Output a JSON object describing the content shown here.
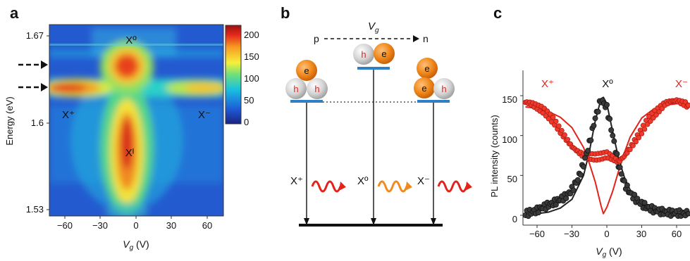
{
  "panels": {
    "a": {
      "label": "a",
      "ylabel": "Energy (eV)",
      "xlabel": "V",
      "xlabel_sub": "g",
      "xlabel_unit": " (V)",
      "xticks": [
        "−60",
        "−30",
        "0",
        "30",
        "60"
      ],
      "yticks": [
        "1.67",
        "1.6",
        "1.53"
      ],
      "annotations": {
        "x0": "Xº",
        "xplus": "X⁺",
        "xminus": "X⁻",
        "xi": "Xᴵ"
      },
      "colorbar_ticks": [
        "200",
        "150",
        "100",
        "50",
        "0"
      ],
      "colorbar_colors": [
        "#1a237e",
        "#1e5bd8",
        "#19c1e0",
        "#6fe07a",
        "#f5f03a",
        "#f79a22",
        "#e52a1c",
        "#9d1010"
      ]
    },
    "b": {
      "label": "b",
      "gate": "V",
      "gate_sub": "g",
      "p": "p",
      "n": "n",
      "hole": "h",
      "electron": "e",
      "labels": {
        "xplus": "X⁺",
        "x0": "Xº",
        "xminus": "X⁻"
      },
      "colors": {
        "electron": "#f08a1c",
        "hole": "#d6d6d6",
        "level": "#2f7fc4",
        "wave_red": "#e2231a",
        "wave_orange": "#f08a1c"
      }
    },
    "c": {
      "label": "c",
      "ylabel": "PL intensity (counts)",
      "xlabel": "V",
      "xlabel_sub": "g",
      "xlabel_unit": " (V)",
      "xticks": [
        "−60",
        "−30",
        "0",
        "30",
        "60"
      ],
      "yticks": [
        "150",
        "100",
        "50",
        "0"
      ],
      "legend": {
        "xplus": "X⁺",
        "x0": "Xº",
        "xminus": "X⁻"
      }
    }
  },
  "chart_data": [
    {
      "type": "heatmap",
      "panel": "a",
      "xlabel": "Vg (V)",
      "ylabel": "Energy (eV)",
      "xlim": [
        -70,
        70
      ],
      "ylim": [
        1.52,
        1.68
      ],
      "colorbar_range": [
        0,
        220
      ],
      "features": [
        {
          "name": "Xº",
          "energy_eV": 1.647,
          "vg_center": -5,
          "vg_range": [
            -22,
            15
          ],
          "peak": 200
        },
        {
          "name": "X⁺",
          "energy_eV": 1.625,
          "vg_range": [
            -70,
            -10
          ],
          "peak": 200
        },
        {
          "name": "X⁻",
          "energy_eV": 1.625,
          "vg_range": [
            25,
            70
          ],
          "peak": 180
        },
        {
          "name": "Xᴵ",
          "energy_eV": 1.58,
          "vg_center": -5,
          "peak": 190
        }
      ],
      "arrows_energy_eV": [
        1.647,
        1.625
      ]
    },
    {
      "type": "scatter",
      "panel": "c",
      "xlabel": "Vg (V)",
      "ylabel": "PL intensity (counts)",
      "xlim": [
        -72,
        72
      ],
      "ylim": [
        -8,
        175
      ],
      "series": [
        {
          "name": "X⁺",
          "color": "#e2231a",
          "x": [
            -70,
            -65,
            -60,
            -55,
            -50,
            -45,
            -40,
            -35,
            -30,
            -25,
            -20,
            -15,
            -10,
            -5,
            0,
            5,
            10,
            15,
            20,
            25,
            30,
            35,
            40,
            45,
            50,
            55,
            60,
            65,
            70
          ],
          "y": [
            142,
            140,
            136,
            132,
            125,
            117,
            106,
            96,
            86,
            80,
            75,
            74,
            73,
            74,
            76,
            72,
            67,
            74,
            84,
            95,
            106,
            118,
            126,
            133,
            140,
            143,
            144,
            141,
            138
          ]
        },
        {
          "name": "Xº",
          "color": "#222222",
          "x": [
            -70,
            -65,
            -60,
            -55,
            -50,
            -45,
            -40,
            -35,
            -30,
            -25,
            -20,
            -15,
            -10,
            -5,
            0,
            5,
            10,
            15,
            20,
            25,
            30,
            35,
            40,
            45,
            50,
            55,
            60,
            65,
            70
          ],
          "y": [
            2,
            4,
            6,
            10,
            13,
            16,
            20,
            24,
            32,
            45,
            64,
            90,
            122,
            145,
            135,
            100,
            64,
            40,
            28,
            20,
            14,
            10,
            7,
            5,
            4,
            3,
            3,
            2,
            2
          ]
        }
      ],
      "fits": [
        {
          "name": "X⁺/X⁻ fit",
          "color": "#e2231a",
          "x": [
            -70,
            -60,
            -50,
            -40,
            -30,
            -20,
            -15,
            -10,
            -5,
            -3,
            0,
            5,
            10,
            15,
            20,
            30,
            40,
            50,
            60,
            70
          ],
          "y": [
            136,
            134,
            130,
            123,
            110,
            85,
            65,
            42,
            12,
            2,
            10,
            30,
            55,
            78,
            98,
            122,
            133,
            138,
            140,
            141
          ]
        },
        {
          "name": "Xº fit",
          "color": "#222222",
          "x": [
            -70,
            -60,
            -50,
            -40,
            -30,
            -20,
            -15,
            -10,
            -5,
            -3,
            0,
            5,
            10,
            15,
            20,
            30,
            40,
            50,
            60,
            70
          ],
          "y": [
            1,
            2,
            4,
            9,
            20,
            50,
            80,
            118,
            146,
            148,
            140,
            105,
            72,
            48,
            32,
            14,
            7,
            3,
            2,
            1
          ]
        }
      ]
    }
  ]
}
